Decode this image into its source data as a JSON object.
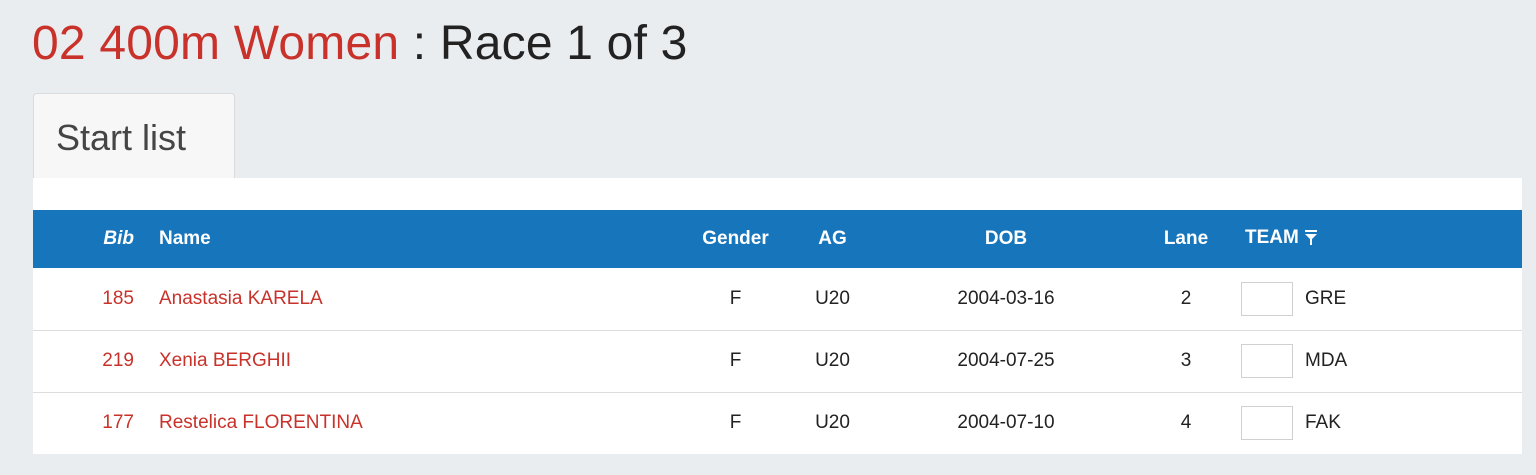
{
  "header": {
    "event": "02 400m Women",
    "separator": " : ",
    "race": "Race 1 of 3"
  },
  "tabs": [
    {
      "label": "Start list",
      "active": true
    }
  ],
  "table": {
    "columns": {
      "bib": "Bib",
      "name": "Name",
      "gender": "Gender",
      "ag": "AG",
      "dob": "DOB",
      "lane": "Lane",
      "team": "TEAM"
    },
    "team_filter_icon": "filter-icon",
    "rows": [
      {
        "bib": "185",
        "name": "Anastasia KARELA",
        "gender": "F",
        "ag": "U20",
        "dob": "2004-03-16",
        "lane": "2",
        "team": "GRE"
      },
      {
        "bib": "219",
        "name": "Xenia BERGHII",
        "gender": "F",
        "ag": "U20",
        "dob": "2004-07-25",
        "lane": "3",
        "team": "MDA"
      },
      {
        "bib": "177",
        "name": "Restelica FLORENTINA",
        "gender": "F",
        "ag": "U20",
        "dob": "2004-07-10",
        "lane": "4",
        "team": "FAK"
      }
    ]
  },
  "colors": {
    "accent_red": "#c8322a",
    "header_blue": "#1775bb",
    "background": "#eaedf0"
  }
}
